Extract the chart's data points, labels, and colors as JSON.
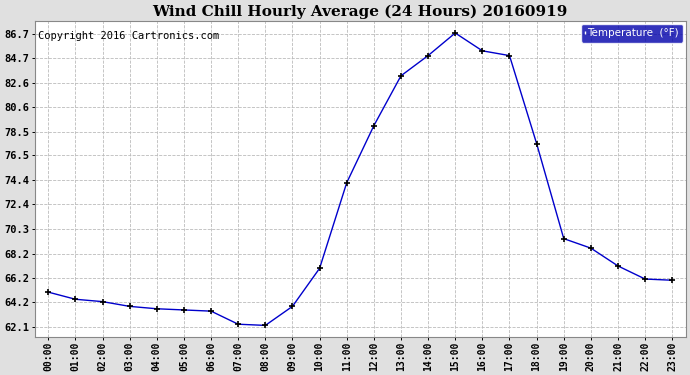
{
  "title": "Wind Chill Hourly Average (24 Hours) 20160919",
  "copyright": "Copyright 2016 Cartronics.com",
  "legend_label": "Temperature  (°F)",
  "hours": [
    0,
    1,
    2,
    3,
    4,
    5,
    6,
    7,
    8,
    9,
    10,
    11,
    12,
    13,
    14,
    15,
    16,
    17,
    18,
    19,
    20,
    21,
    22,
    23
  ],
  "temps": [
    65.0,
    64.4,
    64.2,
    63.8,
    63.6,
    63.5,
    63.4,
    62.3,
    62.2,
    63.8,
    67.0,
    74.2,
    79.0,
    83.2,
    84.9,
    86.8,
    85.3,
    84.9,
    77.5,
    69.5,
    68.7,
    67.2,
    66.1,
    66.0
  ],
  "yticks": [
    62.1,
    64.2,
    66.2,
    68.2,
    70.3,
    72.4,
    74.4,
    76.5,
    78.5,
    80.6,
    82.6,
    84.7,
    86.7
  ],
  "ylim": [
    61.2,
    87.8
  ],
  "line_color": "#0000cc",
  "marker": "+",
  "marker_color": "#000000",
  "grid_color": "#bbbbbb",
  "plot_bg": "#ffffff",
  "fig_bg": "#e0e0e0",
  "title_fontsize": 11,
  "copyright_fontsize": 7.5,
  "legend_bg": "#0000aa",
  "legend_fg": "#ffffff"
}
